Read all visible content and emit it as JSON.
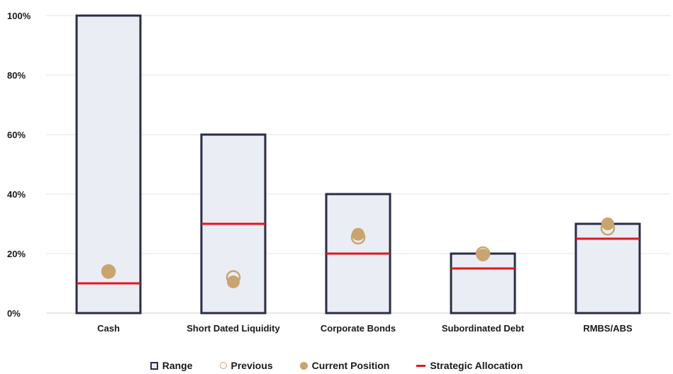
{
  "chart_data": {
    "type": "bar",
    "categories": [
      "Cash",
      "Short Dated Liquidity",
      "Corporate Bonds",
      "Subordinated Debt",
      "RMBS/ABS"
    ],
    "series": [
      {
        "name": "Range",
        "values": [
          100,
          60,
          40,
          20,
          30
        ]
      },
      {
        "name": "Previous",
        "values": [
          14,
          12,
          25.5,
          20,
          28.5
        ]
      },
      {
        "name": "Current Position",
        "values": [
          14,
          10.5,
          26.5,
          19.5,
          30
        ]
      },
      {
        "name": "Strategic Allocation",
        "values": [
          10,
          30,
          20,
          15,
          25
        ]
      }
    ],
    "yticks": [
      "0%",
      "20%",
      "40%",
      "60%",
      "80%",
      "100%"
    ],
    "ylim": [
      0,
      100
    ],
    "grid": true,
    "legend_position": "bottom",
    "colors": {
      "range_border": "#2a2c45",
      "range_fill": "#ebedf5",
      "marker": "#c9a46e",
      "strategic": "#e0161c",
      "grid": "#e4e4e4"
    }
  },
  "legend": {
    "range": "Range",
    "previous": "Previous",
    "current": "Current Position",
    "strategic": "Strategic Allocation"
  }
}
